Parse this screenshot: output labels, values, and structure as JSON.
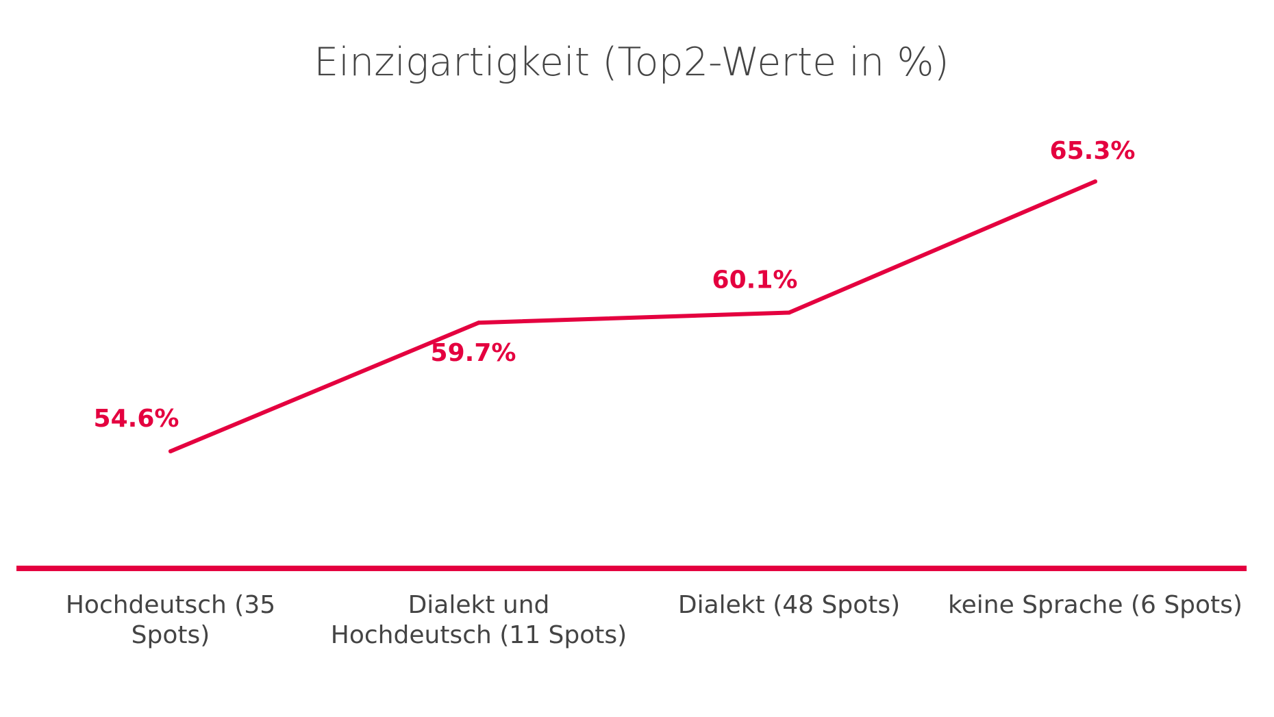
{
  "chart_data": {
    "type": "line",
    "title": "Einzigartigkeit (Top2-Werte in %)",
    "xlabel": "",
    "ylabel": "",
    "categories": [
      [
        "Hochdeutsch (35",
        "Spots)"
      ],
      [
        "Dialekt und",
        "Hochdeutsch (11 Spots)"
      ],
      [
        "Dialekt (48 Spots)"
      ],
      [
        "keine Sprache (6 Spots)"
      ]
    ],
    "series": [
      {
        "name": "Einzigartigkeit",
        "values": [
          54.6,
          59.7,
          60.1,
          65.3
        ],
        "labels": [
          "54.6%",
          "59.7%",
          "60.1%",
          "65.3%"
        ],
        "label_position": [
          "above-left",
          "below",
          "above-left",
          "above"
        ]
      }
    ],
    "ylim": [
      44.0,
      70.0
    ],
    "grid": false,
    "legend": "none",
    "colors": {
      "line": "#e4003f",
      "axis": "#e4003f",
      "text": "#444444"
    }
  }
}
